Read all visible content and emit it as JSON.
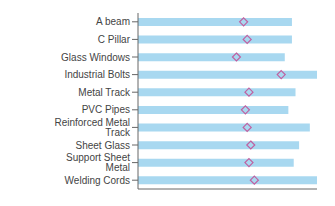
{
  "chart_data": {
    "type": "bar",
    "orientation": "horizontal",
    "categories": [
      "Welding Cords",
      "Support Sheet Metal",
      "Sheet Glass",
      "Reinforced Metal Track",
      "PVC Pipes",
      "Metal Track",
      "Industrial Bolts",
      "Glass Windows",
      "C Pillar",
      "A beam"
    ],
    "series": [
      {
        "type": "bar",
        "color": "#a8d8f0",
        "values": [
          100,
          87,
          90,
          96,
          84,
          88,
          100,
          82,
          86,
          86
        ]
      },
      {
        "type": "scatter",
        "marker": "diamond",
        "color": "#c060a0",
        "values": [
          65,
          62,
          63,
          61,
          60,
          62,
          80,
          55,
          61,
          59
        ]
      }
    ],
    "xlim": [
      0,
      100
    ],
    "grid": false,
    "tick_labels": "y"
  }
}
